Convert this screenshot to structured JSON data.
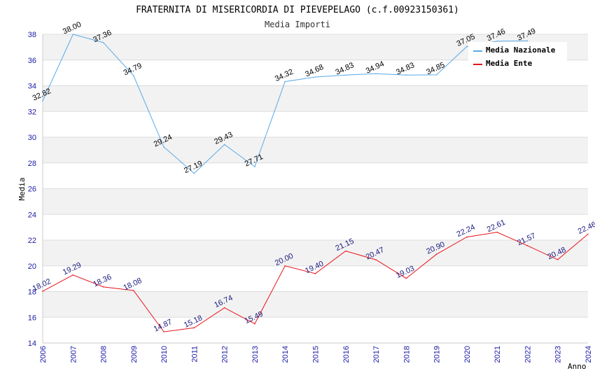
{
  "chart_data": {
    "type": "line",
    "title": "FRATERNITA DI MISERICORDIA DI PIEVEPELAGO (c.f.00923150361)",
    "subtitle": "Media Importi",
    "xlabel": "Anno",
    "ylabel": "Media",
    "ylim": [
      14,
      38
    ],
    "yticks": [
      "14",
      "16",
      "18",
      "20",
      "22",
      "24",
      "26",
      "28",
      "30",
      "32",
      "34",
      "36",
      "38"
    ],
    "categories": [
      "2006",
      "2007",
      "2008",
      "2009",
      "2010",
      "2011",
      "2012",
      "2013",
      "2014",
      "2015",
      "2016",
      "2017",
      "2018",
      "2019",
      "2020",
      "2021",
      "2022",
      "2023",
      "2024"
    ],
    "legend_position": "top-right",
    "series": [
      {
        "name": "Media Nazionale",
        "color": "#5aa9e6",
        "values": [
          32.82,
          38.0,
          37.36,
          34.79,
          29.24,
          27.19,
          29.43,
          27.71,
          34.32,
          34.68,
          34.83,
          34.94,
          34.83,
          34.85,
          37.05,
          37.46,
          37.49,
          null,
          null
        ],
        "labels": [
          "32.82",
          "38.00",
          "37.36",
          "34.79",
          "29.24",
          "27.19",
          "29.43",
          "27.71",
          "34.32",
          "34.68",
          "34.83",
          "34.94",
          "34.83",
          "34.85",
          "37.05",
          "37.46",
          "37.49",
          null,
          null
        ]
      },
      {
        "name": "Media Ente",
        "color": "#e8141c",
        "values": [
          18.02,
          19.29,
          18.36,
          18.08,
          14.87,
          15.18,
          16.74,
          15.49,
          20.0,
          19.4,
          21.15,
          20.47,
          19.03,
          20.9,
          22.24,
          22.61,
          21.57,
          20.48,
          22.46
        ],
        "labels": [
          "18.02",
          "19.29",
          "18.36",
          "18.08",
          "14.87",
          "15.18",
          "16.74",
          "15.49",
          "20.00",
          "19.40",
          "21.15",
          "20.47",
          "19.03",
          "20.90",
          "22.24",
          "22.61",
          "21.57",
          "20.48",
          "22.46"
        ]
      }
    ]
  }
}
